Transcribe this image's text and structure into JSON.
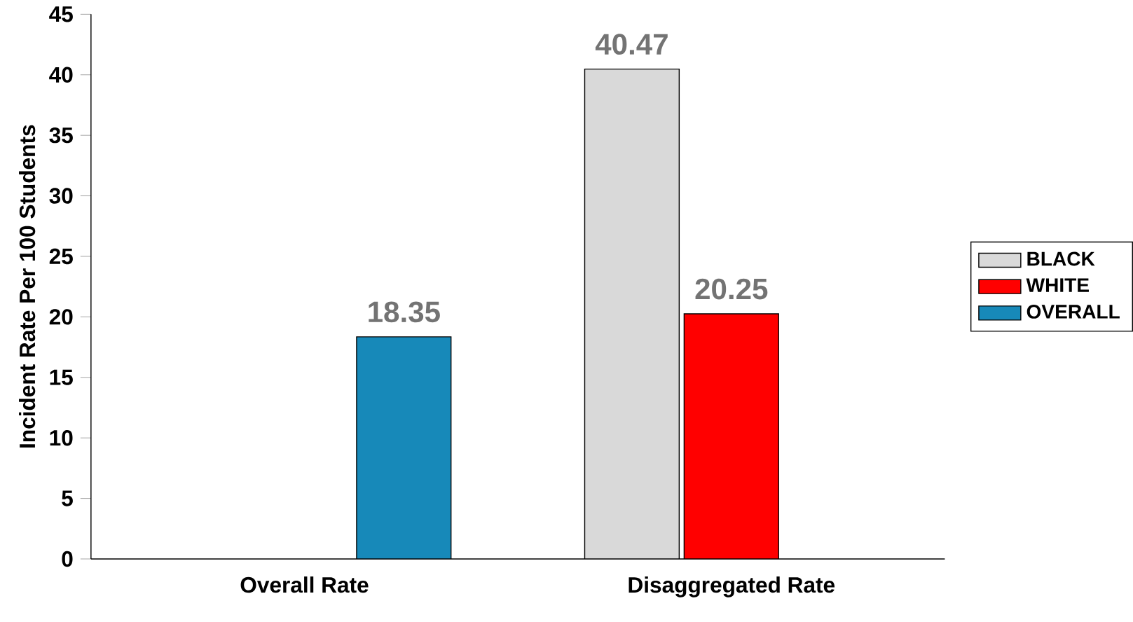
{
  "chart_data": {
    "type": "bar",
    "ylabel": "Incident Rate Per 100 Students",
    "categories": [
      "Overall Rate",
      "Disaggregated Rate"
    ],
    "series": [
      {
        "name": "BLACK",
        "color": "#d9d9d9",
        "values": [
          null,
          40.47
        ]
      },
      {
        "name": "WHITE",
        "color": "#ff0000",
        "values": [
          null,
          20.25
        ]
      },
      {
        "name": "OVERALL",
        "color": "#1789b9",
        "values": [
          18.35,
          null
        ]
      }
    ],
    "ylim": [
      0,
      45
    ],
    "yticks": [
      0,
      5,
      10,
      15,
      20,
      25,
      30,
      35,
      40,
      45
    ],
    "data_labels": true,
    "legend": "right",
    "grid": false
  }
}
